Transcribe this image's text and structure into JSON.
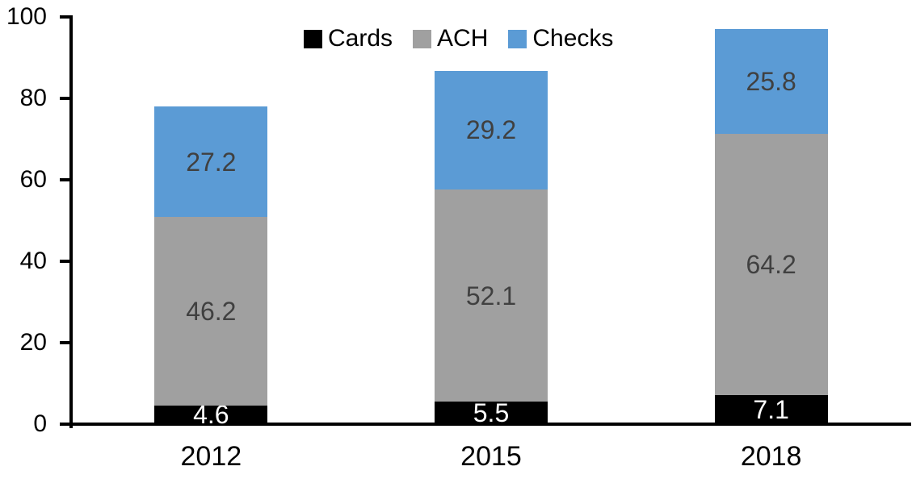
{
  "chart_data": {
    "type": "bar",
    "stacked": true,
    "title": "",
    "xlabel": "",
    "ylabel": "",
    "categories": [
      "2012",
      "2015",
      "2018"
    ],
    "series": [
      {
        "name": "Cards",
        "color": "#000000",
        "label_color": "#ffffff",
        "values": [
          4.6,
          5.5,
          7.1
        ]
      },
      {
        "name": "ACH",
        "color": "#a0a0a0",
        "label_color": "#404040",
        "values": [
          46.2,
          52.1,
          64.2
        ]
      },
      {
        "name": "Checks",
        "color": "#5b9bd5",
        "label_color": "#404040",
        "values": [
          27.2,
          29.2,
          25.8
        ]
      }
    ],
    "totals": [
      78.0,
      86.8,
      97.1
    ],
    "ylim": [
      0,
      100
    ],
    "yticks": [
      0,
      20,
      40,
      60,
      80,
      100
    ],
    "grid": false,
    "legend_position": "top",
    "legend_labels": [
      "Cards",
      "ACH",
      "Checks"
    ],
    "axis_color": "#000000",
    "background_color": "#ffffff"
  }
}
